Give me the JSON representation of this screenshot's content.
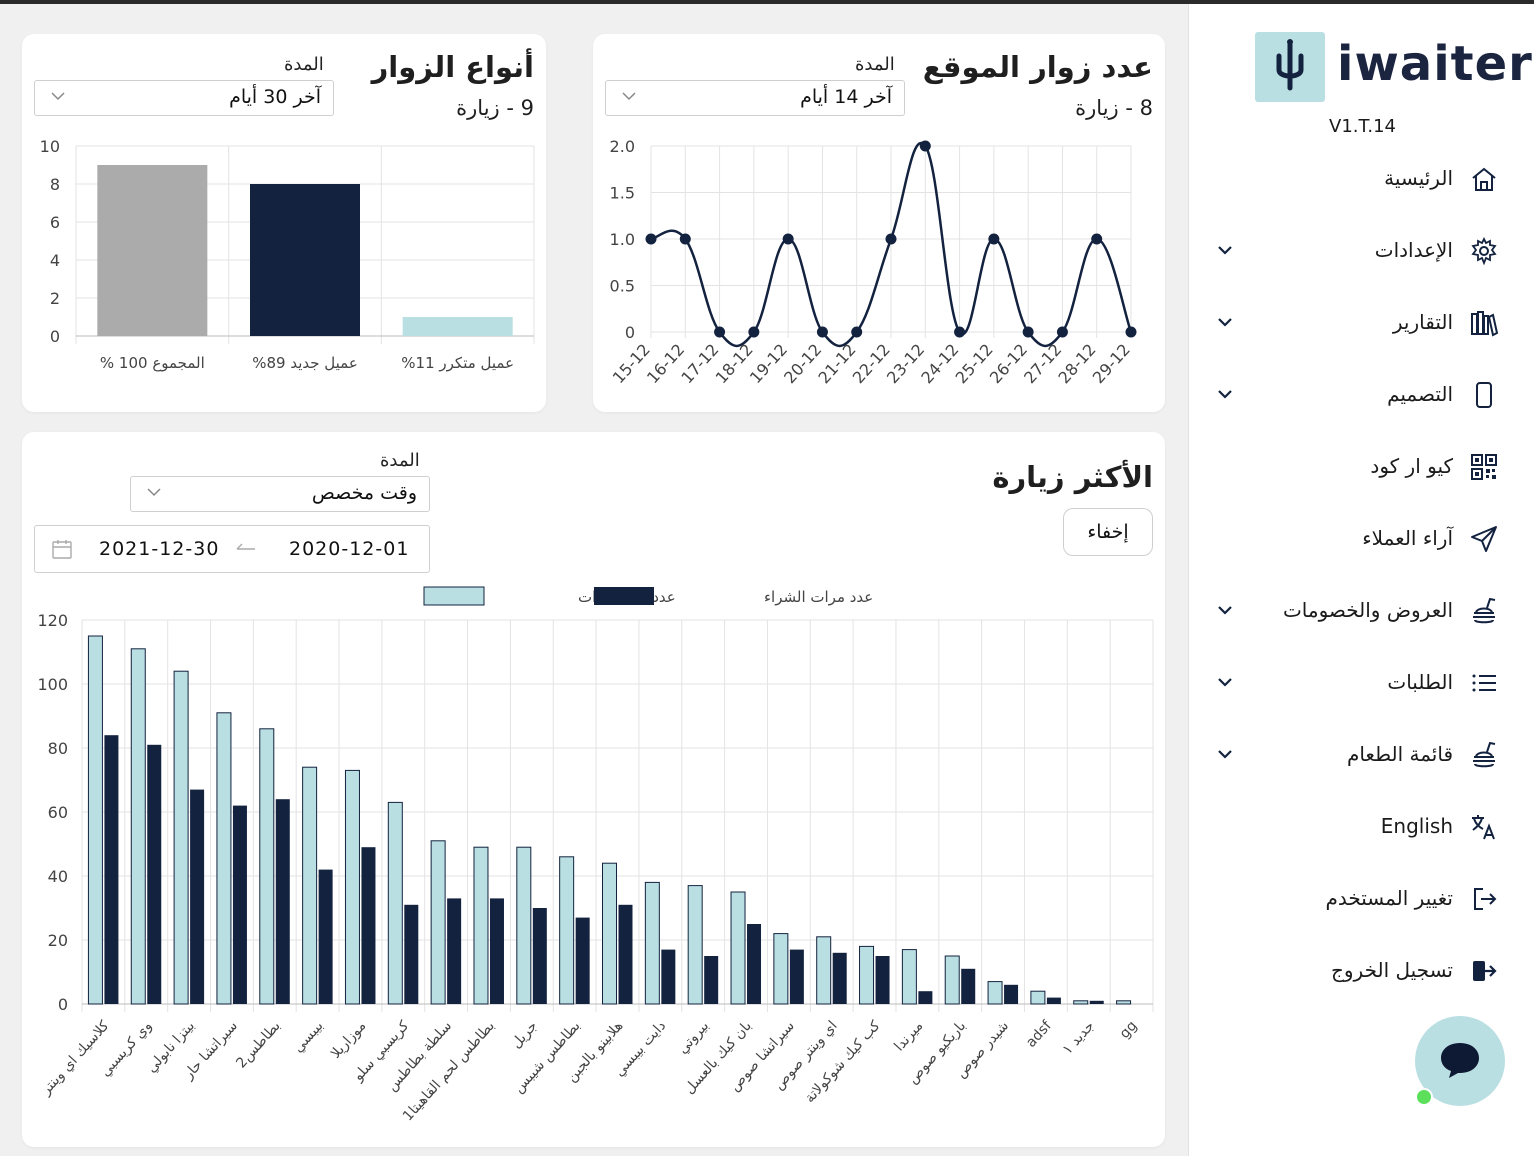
{
  "sidebar": {
    "logo_text": "iwaiter",
    "version": "V1.T.14",
    "items": [
      {
        "label": "الرئيسية",
        "icon": "home-icon",
        "has_arrow": false
      },
      {
        "label": "الإعدادات",
        "icon": "gear-icon",
        "has_arrow": true
      },
      {
        "label": "التقارير",
        "icon": "books-icon",
        "has_arrow": true
      },
      {
        "label": "التصميم",
        "icon": "phone-icon",
        "has_arrow": true
      },
      {
        "label": "كيو ار كود",
        "icon": "qr-code-icon",
        "has_arrow": false
      },
      {
        "label": "آراء العملاء",
        "icon": "send-icon",
        "has_arrow": false
      },
      {
        "label": "العروض والخصومات",
        "icon": "food-icon",
        "has_arrow": true
      },
      {
        "label": "الطلبات",
        "icon": "list-icon",
        "has_arrow": true
      },
      {
        "label": "قائمة الطعام",
        "icon": "food-icon",
        "has_arrow": true
      },
      {
        "label": "English",
        "icon": "translate-icon",
        "has_arrow": false
      },
      {
        "label": "تغيير المستخدم",
        "icon": "switch-user-icon",
        "has_arrow": false
      },
      {
        "label": "تسجيل الخروج",
        "icon": "logout-icon",
        "has_arrow": false
      }
    ]
  },
  "visitor_types": {
    "title": "أنواع الزوار",
    "subtitle": "9 - زيارة",
    "period_label": "المدة",
    "period_value": "آخر 30 أيام"
  },
  "site_visitors": {
    "title": "عدد زوار الموقع",
    "subtitle": "8 - زيارة",
    "period_label": "المدة",
    "period_value": "آخر 14 أيام"
  },
  "most_visited": {
    "title": "الأكثر زيارة",
    "hide_button": "إخفاء",
    "period_label": "المدة",
    "period_value": "وقت مخصص",
    "date_from": "2020-12-01",
    "date_to": "2021-12-30"
  },
  "colors": {
    "navy": "#13223f",
    "light_blue": "#b9dfe2",
    "gray": "#ababab"
  },
  "chart_data": [
    {
      "type": "bar",
      "categories": [
        "المجموع 100 %",
        "عميل جديد 89%",
        "عميل متكرر 11%"
      ],
      "values": [
        9,
        8,
        1
      ],
      "colors": [
        "#ababab",
        "#13223f",
        "#b9dfe2"
      ],
      "ylim": [
        0,
        10
      ],
      "yticks": [
        0,
        2,
        4,
        6,
        8,
        10
      ],
      "grid": true
    },
    {
      "type": "line",
      "x": [
        "15-12",
        "16-12",
        "17-12",
        "18-12",
        "19-12",
        "20-12",
        "21-12",
        "22-12",
        "23-12",
        "24-12",
        "25-12",
        "26-12",
        "27-12",
        "28-12",
        "29-12"
      ],
      "values": [
        1,
        1,
        0,
        0,
        1,
        0,
        0,
        1,
        2,
        0,
        1,
        0,
        0,
        1,
        0
      ],
      "ylim": [
        0,
        2
      ],
      "yticks": [
        0,
        0.5,
        1.0,
        1.5,
        2.0
      ],
      "grid": true
    },
    {
      "type": "bar",
      "categories": [
        "كلاسيك اي وينتر",
        "وي كريسبي",
        "بيتزا نابولي",
        "سيراتشا حار",
        "بطاطس2",
        "بيبسي",
        "موزاريلا",
        "كريسبي سلو",
        "سلطة بطاطس",
        "بطاطس لحم القاهيتا1",
        "جريل",
        "بطاطس شيبس",
        "هلابينو بالجبن",
        "دايت بيبسي",
        "بيروتي",
        "بان كيك بالعسل",
        "سيراتشا صوص",
        "اي وينتر صوص",
        "كب كيك شوكولاتة",
        "ميرندا",
        "باربكيو صوص",
        "شيدر صوص",
        "adsf",
        "جديد ١",
        "gg"
      ],
      "series": [
        {
          "name": "عدد المشاهدات",
          "values": [
            115,
            111,
            104,
            91,
            86,
            74,
            73,
            63,
            51,
            49,
            49,
            46,
            44,
            38,
            37,
            35,
            22,
            21,
            18,
            17,
            15,
            7,
            4,
            1,
            1
          ]
        },
        {
          "name": "عدد مرات الشراء",
          "values": [
            84,
            81,
            67,
            62,
            64,
            42,
            49,
            31,
            33,
            33,
            30,
            27,
            31,
            17,
            15,
            25,
            17,
            16,
            15,
            4,
            11,
            6,
            2,
            1,
            0
          ]
        }
      ],
      "ylim": [
        0,
        120
      ],
      "yticks": [
        0,
        20,
        40,
        60,
        80,
        100,
        120
      ],
      "legend": "top",
      "grid": true
    }
  ]
}
